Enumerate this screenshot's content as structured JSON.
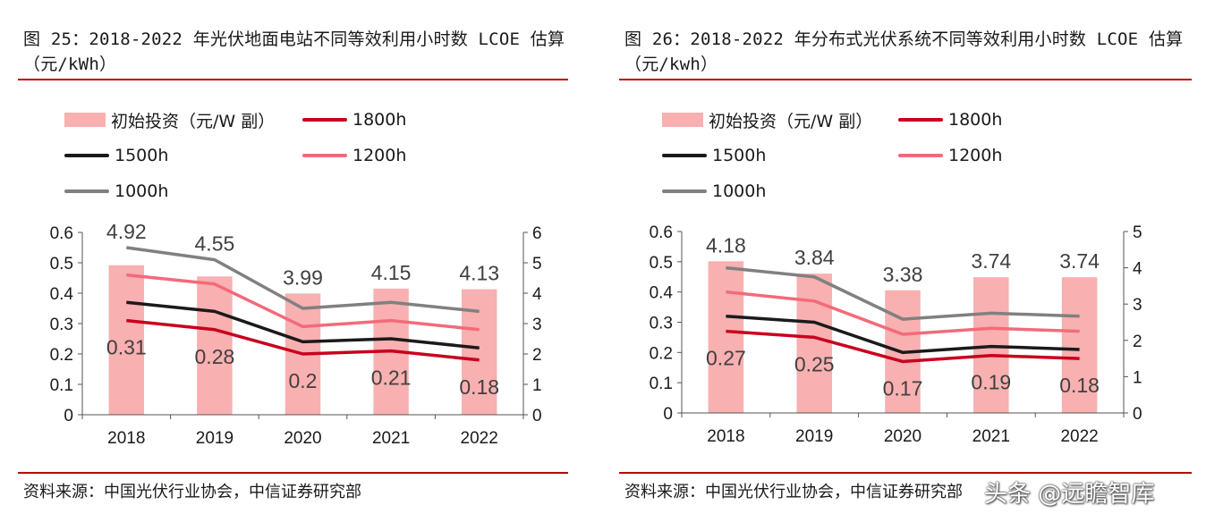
{
  "panels": [
    {
      "title": "图 25：2018-2022 年光伏地面电站不同等效利用小时数 LCOE 估算（元/kWh）",
      "source": "资料来源：中国光伏行业协会，中信证券研究部",
      "legend": [
        "初始投资（元/W 副）",
        "1800h",
        "1500h",
        "1200h",
        "1000h"
      ]
    },
    {
      "title": "图 26：2018-2022 年分布式光伏系统不同等效利用小时数 LCOE 估算（元/kwh）",
      "source": "资料来源：中国光伏行业协会，中信证券研究部",
      "legend": [
        "初始投资（元/W 副）",
        "1800h",
        "1500h",
        "1200h",
        "1000h"
      ]
    }
  ],
  "watermark": "头条 @远瞻智库",
  "colors": {
    "bar": "#f8b0b0",
    "s1800": "#c8001e",
    "s1500": "#1a1a1a",
    "s1200": "#f26b7a",
    "s1000": "#808080",
    "rule": "#c00000"
  },
  "chart_data": [
    {
      "type": "bar+line",
      "categories": [
        "2018",
        "2019",
        "2020",
        "2021",
        "2022"
      ],
      "bar": {
        "name": "初始投资（元/W 副）",
        "axis": "right",
        "values": [
          4.92,
          4.55,
          3.99,
          4.15,
          4.13
        ]
      },
      "series": [
        {
          "name": "1800h",
          "values": [
            0.31,
            0.28,
            0.2,
            0.21,
            0.18
          ]
        },
        {
          "name": "1500h",
          "values": [
            0.37,
            0.34,
            0.24,
            0.25,
            0.22
          ]
        },
        {
          "name": "1200h",
          "values": [
            0.46,
            0.43,
            0.29,
            0.31,
            0.28
          ]
        },
        {
          "name": "1000h",
          "values": [
            0.55,
            0.51,
            0.35,
            0.37,
            0.34
          ]
        }
      ],
      "ylim_left": [
        0,
        0.6
      ],
      "yticks_left": [
        "0",
        "0.1",
        "0.2",
        "0.3",
        "0.4",
        "0.5",
        "0.6"
      ],
      "ylim_right": [
        0,
        6
      ],
      "yticks_right": [
        "0",
        "1",
        "2",
        "3",
        "4",
        "5",
        "6"
      ],
      "bar_labels": [
        "4.92",
        "4.55",
        "3.99",
        "4.15",
        "4.13"
      ],
      "line_labels": [
        "0.31",
        "0.28",
        "0.2",
        "0.21",
        "0.18"
      ]
    },
    {
      "type": "bar+line",
      "categories": [
        "2018",
        "2019",
        "2020",
        "2021",
        "2022"
      ],
      "bar": {
        "name": "初始投资（元/W 副）",
        "axis": "right",
        "values": [
          4.18,
          3.84,
          3.38,
          3.74,
          3.74
        ]
      },
      "series": [
        {
          "name": "1800h",
          "values": [
            0.27,
            0.25,
            0.17,
            0.19,
            0.18
          ]
        },
        {
          "name": "1500h",
          "values": [
            0.32,
            0.3,
            0.2,
            0.22,
            0.21
          ]
        },
        {
          "name": "1200h",
          "values": [
            0.4,
            0.37,
            0.26,
            0.28,
            0.27
          ]
        },
        {
          "name": "1000h",
          "values": [
            0.48,
            0.45,
            0.31,
            0.33,
            0.32
          ]
        }
      ],
      "ylim_left": [
        0,
        0.6
      ],
      "yticks_left": [
        "0",
        "0.1",
        "0.2",
        "0.3",
        "0.4",
        "0.5",
        "0.6"
      ],
      "ylim_right": [
        0,
        5
      ],
      "yticks_right": [
        "0",
        "1",
        "2",
        "3",
        "4",
        "5"
      ],
      "bar_labels": [
        "4.18",
        "3.84",
        "3.38",
        "3.74",
        "3.74"
      ],
      "line_labels": [
        "0.27",
        "0.25",
        "0.17",
        "0.19",
        "0.18"
      ]
    }
  ]
}
